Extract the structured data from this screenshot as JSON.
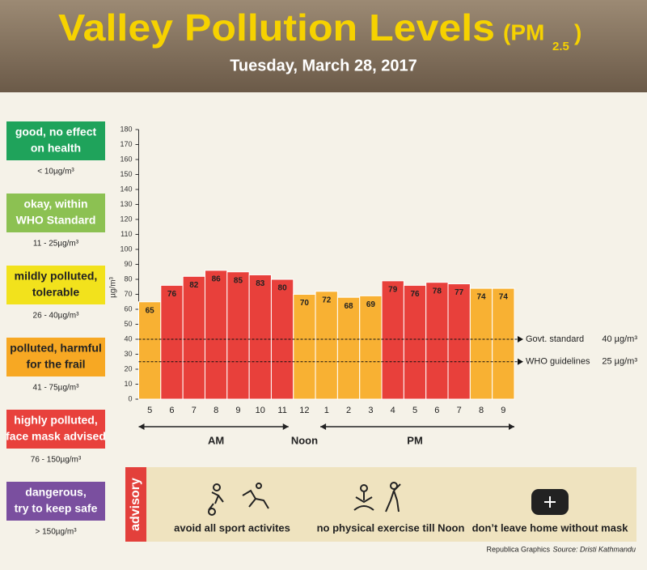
{
  "header": {
    "title": "Valley Pollution Levels",
    "unit_open": "(PM",
    "unit_sub": "2.5",
    "unit_close": ")",
    "date": "Tuesday, March 28, 2017"
  },
  "levels": [
    {
      "lines": [
        "good, no effect",
        "on health"
      ],
      "range": "< 10µg/m³",
      "color": "#1fa35b",
      "text_color": "#ffffff"
    },
    {
      "lines": [
        "okay, within",
        "WHO Standard"
      ],
      "range": "11 - 25µg/m³",
      "color": "#8cc152",
      "text_color": "#ffffff"
    },
    {
      "lines": [
        "mildly polluted,",
        "tolerable"
      ],
      "range": "26 - 40µg/m³",
      "color": "#f2e21c",
      "text_color": "#222222"
    },
    {
      "lines": [
        "polluted, harmful",
        "for the frail"
      ],
      "range": "41 - 75µg/m³",
      "color": "#f7a823",
      "text_color": "#222222"
    },
    {
      "lines": [
        "highly polluted,",
        "face mask advised"
      ],
      "range": "76 - 150µg/m³",
      "color": "#e8413c",
      "text_color": "#ffffff"
    },
    {
      "lines": [
        "dangerous,",
        "try to keep safe"
      ],
      "range": "> 150µg/m³",
      "color": "#7a4f9f",
      "text_color": "#ffffff"
    }
  ],
  "chart_data": {
    "type": "bar",
    "categories": [
      "5",
      "6",
      "7",
      "8",
      "9",
      "10",
      "11",
      "12",
      "1",
      "2",
      "3",
      "4",
      "5",
      "6",
      "7",
      "8",
      "9"
    ],
    "values": [
      65,
      76,
      82,
      86,
      85,
      83,
      80,
      70,
      72,
      68,
      69,
      79,
      76,
      78,
      77,
      74,
      74
    ],
    "colors": [
      "#f8b133",
      "#e8403b",
      "#e8403b",
      "#e8403b",
      "#e8403b",
      "#e8403b",
      "#e8403b",
      "#f8b133",
      "#f8b133",
      "#f8b133",
      "#f8b133",
      "#e8403b",
      "#e8403b",
      "#e8403b",
      "#e8403b",
      "#f8b133",
      "#f8b133"
    ],
    "ylim": [
      0,
      180
    ],
    "yticks": [
      0,
      10,
      20,
      30,
      40,
      50,
      60,
      70,
      80,
      90,
      100,
      110,
      120,
      130,
      140,
      150,
      160,
      170,
      180
    ],
    "y_label": "µg/m³",
    "grid": false,
    "periods": [
      "AM",
      "Noon",
      "PM"
    ],
    "reference_lines": [
      {
        "value": 40,
        "label": "Govt. standard",
        "value_label": "40 µg/m³"
      },
      {
        "value": 25,
        "label": "WHO guidelines",
        "value_label": "25 µg/m³"
      }
    ]
  },
  "advisory": {
    "tab": "advisory",
    "items": [
      "avoid all sport activites",
      "no physical exercise till Noon",
      "don’t leave home without mask"
    ]
  },
  "footer": {
    "credit": "Republica Graphics",
    "source": "Source: Dristi Kathmandu"
  }
}
